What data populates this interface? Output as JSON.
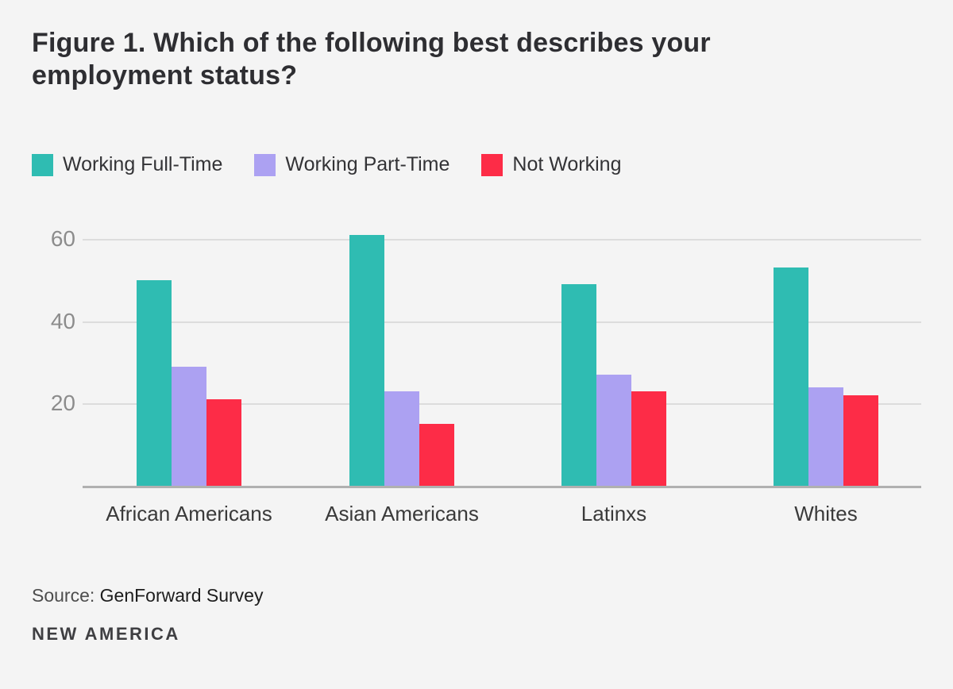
{
  "title": "Figure 1. Which of the following best describes your employment status?",
  "chart_data": {
    "type": "bar",
    "categories": [
      "African Americans",
      "Asian Americans",
      "Latinxs",
      "Whites"
    ],
    "series": [
      {
        "name": "Working Full-Time",
        "color": "#2fbcb2",
        "values": [
          50,
          61,
          49,
          53
        ]
      },
      {
        "name": "Working Part-Time",
        "color": "#aca1f2",
        "values": [
          29,
          23,
          27,
          24
        ]
      },
      {
        "name": "Not Working",
        "color": "#fd2c47",
        "values": [
          21,
          15,
          23,
          22
        ]
      }
    ],
    "yticks": [
      20,
      40,
      60
    ],
    "ylim": [
      0,
      65
    ],
    "grid": true,
    "legend_position": "top",
    "xlabel": "",
    "ylabel": ""
  },
  "source": {
    "prefix": "Source:",
    "text": "GenForward Survey"
  },
  "brand": "NEW AMERICA",
  "colors": {
    "background": "#f4f4f4",
    "gridline": "#dcdcdc",
    "axisline": "#b0b0b0",
    "tick_text": "#8c8c8c",
    "category_text": "#3a3a3a",
    "title_text": "#2e2e32",
    "full_time": "#2fbcb2",
    "part_time": "#aca1f2",
    "not_working": "#fd2c47"
  }
}
